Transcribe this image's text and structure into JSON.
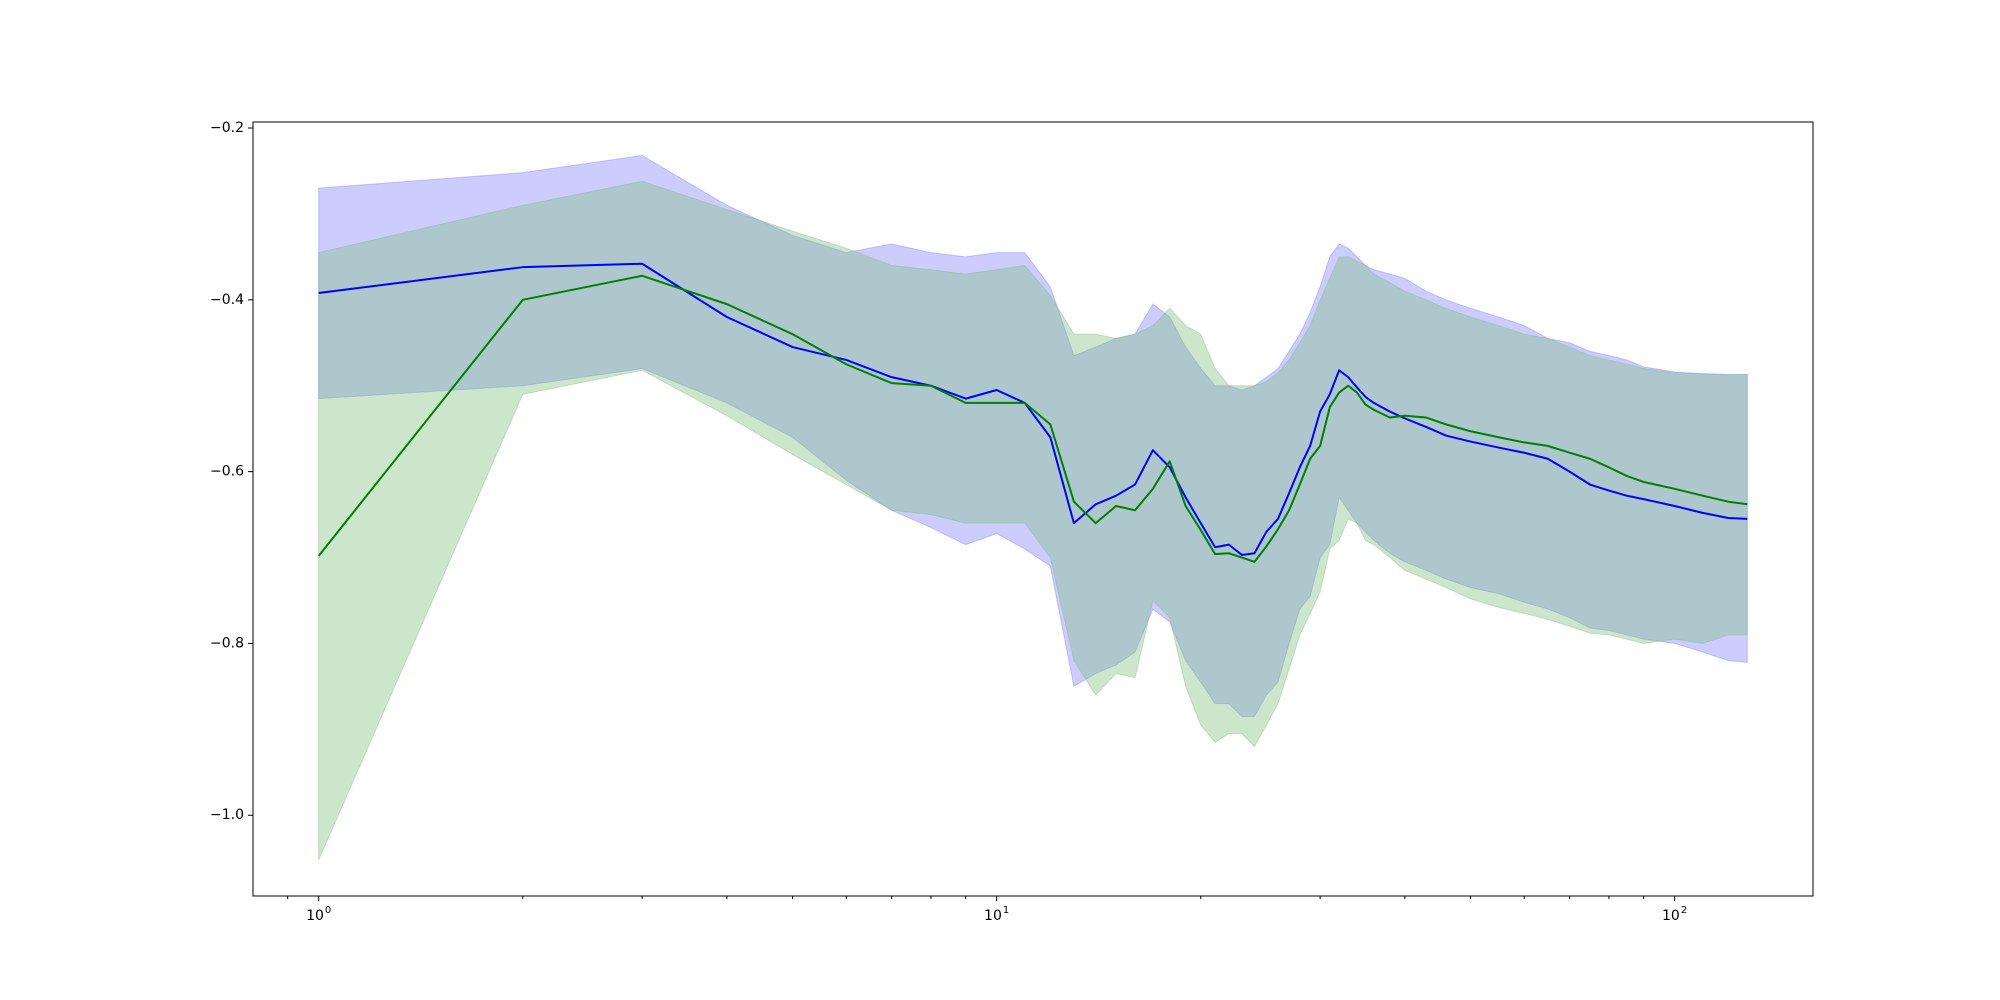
{
  "chart_data": {
    "type": "line",
    "x_scale": "log",
    "xlim": [
      0.8,
      160
    ],
    "ylim": [
      -1.094,
      -0.193
    ],
    "grid": false,
    "y_ticks": [
      {
        "value": -0.2,
        "label": "−0.2"
      },
      {
        "value": -0.4,
        "label": "−0.4"
      },
      {
        "value": -0.6,
        "label": "−0.6"
      },
      {
        "value": -0.8,
        "label": "−0.8"
      },
      {
        "value": -1.0,
        "label": "−1.0"
      }
    ],
    "x_ticks": [
      {
        "value": 1,
        "base": "10",
        "exp": "0"
      },
      {
        "value": 10,
        "base": "10",
        "exp": "1"
      },
      {
        "value": 100,
        "base": "10",
        "exp": "2"
      }
    ],
    "x": [
      1,
      2,
      3,
      4,
      5,
      6,
      7,
      8,
      9,
      10,
      11,
      12,
      13,
      14,
      15,
      16,
      17,
      18,
      19,
      20,
      21,
      22,
      23,
      24,
      25,
      26,
      27,
      28,
      29,
      30,
      31,
      32,
      33,
      34,
      35,
      36,
      38,
      40,
      43,
      46,
      50,
      55,
      60,
      65,
      70,
      75,
      80,
      85,
      90,
      100,
      110,
      120,
      128
    ],
    "series": [
      {
        "color": "#0000ff",
        "band_color": "#8080ff",
        "band_alpha": 0.4,
        "values": [
          -0.392,
          -0.362,
          -0.358,
          -0.42,
          -0.455,
          -0.47,
          -0.49,
          -0.5,
          -0.515,
          -0.505,
          -0.52,
          -0.56,
          -0.66,
          -0.638,
          -0.628,
          -0.615,
          -0.575,
          -0.595,
          -0.63,
          -0.66,
          -0.688,
          -0.685,
          -0.697,
          -0.695,
          -0.67,
          -0.655,
          -0.625,
          -0.595,
          -0.57,
          -0.53,
          -0.51,
          -0.482,
          -0.49,
          -0.502,
          -0.513,
          -0.52,
          -0.53,
          -0.538,
          -0.548,
          -0.558,
          -0.565,
          -0.572,
          -0.578,
          -0.585,
          -0.6,
          -0.615,
          -0.622,
          -0.628,
          -0.632,
          -0.64,
          -0.648,
          -0.654,
          -0.655
        ],
        "lower": [
          -0.515,
          -0.5,
          -0.48,
          -0.52,
          -0.56,
          -0.61,
          -0.645,
          -0.665,
          -0.685,
          -0.672,
          -0.69,
          -0.71,
          -0.85,
          -0.835,
          -0.825,
          -0.81,
          -0.76,
          -0.775,
          -0.82,
          -0.845,
          -0.87,
          -0.87,
          -0.885,
          -0.885,
          -0.86,
          -0.845,
          -0.8,
          -0.76,
          -0.745,
          -0.7,
          -0.685,
          -0.63,
          -0.645,
          -0.66,
          -0.67,
          -0.68,
          -0.695,
          -0.705,
          -0.715,
          -0.725,
          -0.735,
          -0.742,
          -0.752,
          -0.76,
          -0.77,
          -0.782,
          -0.785,
          -0.79,
          -0.795,
          -0.8,
          -0.81,
          -0.82,
          -0.822
        ],
        "upper": [
          -0.27,
          -0.252,
          -0.232,
          -0.29,
          -0.325,
          -0.345,
          -0.335,
          -0.345,
          -0.35,
          -0.345,
          -0.345,
          -0.385,
          -0.465,
          -0.455,
          -0.445,
          -0.44,
          -0.405,
          -0.42,
          -0.455,
          -0.48,
          -0.5,
          -0.5,
          -0.505,
          -0.5,
          -0.49,
          -0.48,
          -0.46,
          -0.44,
          -0.415,
          -0.385,
          -0.35,
          -0.335,
          -0.34,
          -0.35,
          -0.36,
          -0.365,
          -0.37,
          -0.375,
          -0.39,
          -0.4,
          -0.41,
          -0.42,
          -0.43,
          -0.445,
          -0.45,
          -0.46,
          -0.465,
          -0.47,
          -0.478,
          -0.484,
          -0.486,
          -0.487,
          -0.487
        ]
      },
      {
        "color": "#008000",
        "band_color": "#80c080",
        "band_alpha": 0.4,
        "values": [
          -0.698,
          -0.4,
          -0.372,
          -0.405,
          -0.44,
          -0.475,
          -0.497,
          -0.5,
          -0.52,
          -0.52,
          -0.52,
          -0.545,
          -0.635,
          -0.66,
          -0.64,
          -0.645,
          -0.62,
          -0.588,
          -0.64,
          -0.668,
          -0.696,
          -0.695,
          -0.7,
          -0.705,
          -0.687,
          -0.667,
          -0.645,
          -0.615,
          -0.585,
          -0.57,
          -0.525,
          -0.508,
          -0.5,
          -0.508,
          -0.522,
          -0.528,
          -0.537,
          -0.535,
          -0.537,
          -0.545,
          -0.553,
          -0.56,
          -0.566,
          -0.57,
          -0.578,
          -0.585,
          -0.595,
          -0.605,
          -0.612,
          -0.62,
          -0.628,
          -0.635,
          -0.638
        ],
        "lower": [
          -1.052,
          -0.51,
          -0.482,
          -0.535,
          -0.58,
          -0.615,
          -0.645,
          -0.65,
          -0.66,
          -0.66,
          -0.66,
          -0.7,
          -0.82,
          -0.86,
          -0.835,
          -0.84,
          -0.75,
          -0.77,
          -0.85,
          -0.895,
          -0.915,
          -0.905,
          -0.905,
          -0.92,
          -0.895,
          -0.87,
          -0.83,
          -0.79,
          -0.765,
          -0.74,
          -0.69,
          -0.68,
          -0.655,
          -0.66,
          -0.68,
          -0.685,
          -0.7,
          -0.715,
          -0.725,
          -0.735,
          -0.748,
          -0.758,
          -0.765,
          -0.772,
          -0.78,
          -0.788,
          -0.79,
          -0.795,
          -0.8,
          -0.795,
          -0.8,
          -0.79,
          -0.79
        ],
        "upper": [
          -0.345,
          -0.29,
          -0.262,
          -0.295,
          -0.32,
          -0.34,
          -0.36,
          -0.365,
          -0.37,
          -0.365,
          -0.36,
          -0.395,
          -0.44,
          -0.44,
          -0.445,
          -0.44,
          -0.43,
          -0.41,
          -0.43,
          -0.44,
          -0.48,
          -0.5,
          -0.5,
          -0.5,
          -0.495,
          -0.485,
          -0.47,
          -0.45,
          -0.43,
          -0.4,
          -0.375,
          -0.35,
          -0.35,
          -0.355,
          -0.36,
          -0.37,
          -0.38,
          -0.39,
          -0.4,
          -0.41,
          -0.42,
          -0.43,
          -0.44,
          -0.445,
          -0.455,
          -0.465,
          -0.47,
          -0.475,
          -0.48,
          -0.485,
          -0.486,
          -0.487,
          -0.487
        ]
      }
    ]
  }
}
